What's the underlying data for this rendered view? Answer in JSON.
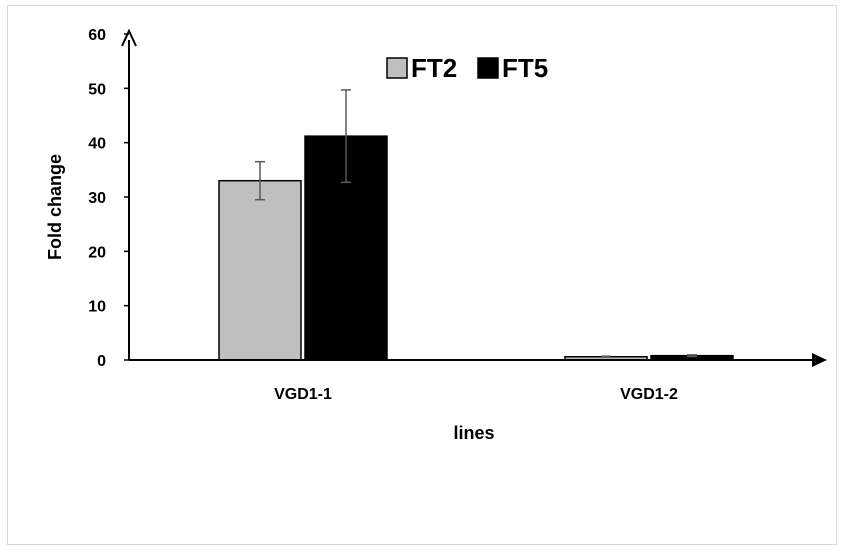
{
  "chart_data": {
    "type": "bar",
    "categories": [
      "VGD1-1",
      "VGD1-2"
    ],
    "series": [
      {
        "name": "FT2",
        "values": [
          33,
          0.6
        ],
        "error": [
          3.5,
          0.1
        ],
        "color": "#bfbfbf"
      },
      {
        "name": "FT5",
        "values": [
          41.2,
          0.8
        ],
        "error": [
          8.5,
          0.15
        ],
        "color": "#000000"
      }
    ],
    "xlabel": "lines",
    "ylabel": "Fold change",
    "ylim": [
      0,
      60
    ],
    "yticks": [
      0,
      10,
      20,
      30,
      40,
      50,
      60
    ],
    "grid": false,
    "legend_position": "top-center",
    "error_bar_color": "#595959"
  }
}
